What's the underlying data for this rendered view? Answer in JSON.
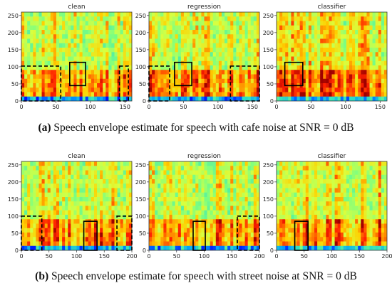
{
  "rows": [
    {
      "id": "a",
      "caption_label": "(a)",
      "caption_text": "Speech envelope estimate for speech with cafe noise at SNR = 0 dB",
      "x_ticks": [
        "0",
        "50",
        "100",
        "150"
      ],
      "x_max": 160,
      "panels": [
        {
          "title": "clean",
          "seed": 11,
          "boxes": [
            {
              "x0": 70,
              "x1": 93,
              "y0": 45,
              "y1": 113,
              "style": "solid"
            },
            {
              "x0": 0,
              "x1": 57,
              "y0": 0,
              "y1": 102,
              "style": "dashed"
            },
            {
              "x0": 142,
              "x1": 155,
              "y0": 0,
              "y1": 102,
              "style": "dashed"
            }
          ]
        },
        {
          "title": "regression",
          "seed": 23,
          "boxes": [
            {
              "x0": 37,
              "x1": 62,
              "y0": 45,
              "y1": 113,
              "style": "solid"
            },
            {
              "x0": 0,
              "x1": 30,
              "y0": 0,
              "y1": 102,
              "style": "dashed"
            },
            {
              "x0": 118,
              "x1": 160,
              "y0": 0,
              "y1": 102,
              "style": "dashed"
            }
          ]
        },
        {
          "title": "classifier",
          "seed": 37,
          "boxes": [
            {
              "x0": 12,
              "x1": 38,
              "y0": 45,
              "y1": 113,
              "style": "solid"
            }
          ]
        }
      ]
    },
    {
      "id": "b",
      "caption_label": "(b)",
      "caption_text": "Speech envelope estimate for speech with street noise at SNR = 0 dB",
      "x_ticks": [
        "0",
        "50",
        "100",
        "150",
        "200"
      ],
      "x_max": 200,
      "panels": [
        {
          "title": "clean",
          "seed": 51,
          "boxes": [
            {
              "x0": 113,
              "x1": 137,
              "y0": 0,
              "y1": 85,
              "style": "solid"
            },
            {
              "x0": 0,
              "x1": 37,
              "y0": 0,
              "y1": 100,
              "style": "dashed"
            },
            {
              "x0": 173,
              "x1": 200,
              "y0": 0,
              "y1": 100,
              "style": "dashed"
            }
          ]
        },
        {
          "title": "regression",
          "seed": 67,
          "boxes": [
            {
              "x0": 80,
              "x1": 102,
              "y0": 0,
              "y1": 85,
              "style": "solid"
            },
            {
              "x0": 160,
              "x1": 200,
              "y0": 0,
              "y1": 100,
              "style": "dashed"
            }
          ]
        },
        {
          "title": "classifier",
          "seed": 83,
          "boxes": [
            {
              "x0": 33,
              "x1": 57,
              "y0": 0,
              "y1": 85,
              "style": "solid"
            }
          ]
        }
      ]
    }
  ],
  "y_ticks": [
    "0",
    "50",
    "100",
    "150",
    "200",
    "250"
  ],
  "y_max": 260,
  "colormap": [
    "#00007f",
    "#0000ff",
    "#00a0ff",
    "#33e0c0",
    "#7fff7f",
    "#d8ff40",
    "#ffd000",
    "#ff7000",
    "#ff2000",
    "#a00000"
  ]
}
